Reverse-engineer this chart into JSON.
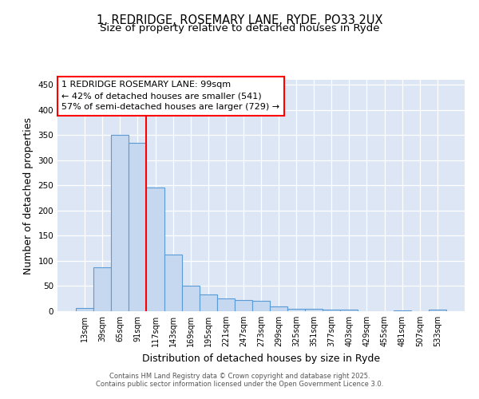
{
  "title1": "1, REDRIDGE, ROSEMARY LANE, RYDE, PO33 2UX",
  "title2": "Size of property relative to detached houses in Ryde",
  "xlabel": "Distribution of detached houses by size in Ryde",
  "ylabel": "Number of detached properties",
  "categories": [
    "13sqm",
    "39sqm",
    "65sqm",
    "91sqm",
    "117sqm",
    "143sqm",
    "169sqm",
    "195sqm",
    "221sqm",
    "247sqm",
    "273sqm",
    "299sqm",
    "325sqm",
    "351sqm",
    "377sqm",
    "403sqm",
    "429sqm",
    "455sqm",
    "481sqm",
    "507sqm",
    "533sqm"
  ],
  "values": [
    6,
    88,
    350,
    335,
    246,
    113,
    50,
    33,
    26,
    22,
    21,
    9,
    5,
    4,
    3,
    3,
    0,
    0,
    1,
    0,
    3
  ],
  "bar_color": "#c5d8f0",
  "bar_edge_color": "#5b9bd5",
  "red_line_x": 3.5,
  "annotation_line1": "1 REDRIDGE ROSEMARY LANE: 99sqm",
  "annotation_line2": "← 42% of detached houses are smaller (541)",
  "annotation_line3": "57% of semi-detached houses are larger (729) →",
  "ylim": [
    0,
    460
  ],
  "bg_color": "#dce6f5",
  "footer1": "Contains HM Land Registry data © Crown copyright and database right 2025.",
  "footer2": "Contains public sector information licensed under the Open Government Licence 3.0.",
  "title_fontsize": 10.5,
  "subtitle_fontsize": 9.5,
  "axis_label_fontsize": 9,
  "tick_fontsize": 7,
  "annotation_fontsize": 8,
  "footer_fontsize": 6
}
